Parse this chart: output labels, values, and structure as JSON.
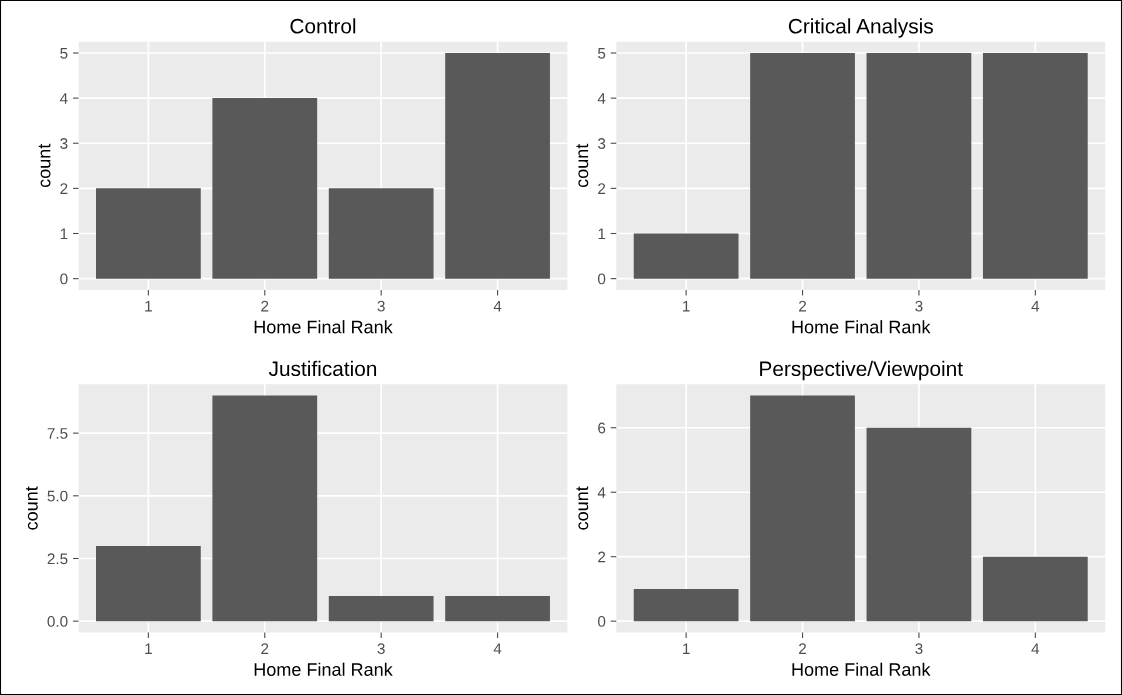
{
  "chart_data": [
    {
      "type": "bar",
      "title": "Control",
      "xlabel": "Home Final Rank",
      "ylabel": "count",
      "categories": [
        "1",
        "2",
        "3",
        "4"
      ],
      "values": [
        2,
        4,
        2,
        5
      ],
      "color": "#595959",
      "ylim": [
        -0.25,
        5.25
      ],
      "yticks": [
        0,
        1,
        2,
        3,
        4,
        5
      ],
      "grid": true
    },
    {
      "type": "bar",
      "title": "Critical Analysis",
      "xlabel": "Home Final Rank",
      "ylabel": "count",
      "categories": [
        "1",
        "2",
        "3",
        "4"
      ],
      "values": [
        1,
        5,
        5,
        5
      ],
      "color": "#595959",
      "ylim": [
        -0.25,
        5.25
      ],
      "yticks": [
        0,
        1,
        2,
        3,
        4,
        5
      ],
      "grid": true
    },
    {
      "type": "bar",
      "title": "Justification",
      "xlabel": "Home Final Rank",
      "ylabel": "count",
      "categories": [
        "1",
        "2",
        "3",
        "4"
      ],
      "values": [
        3,
        9,
        1,
        1
      ],
      "color": "#595959",
      "ylim": [
        -0.45,
        9.45
      ],
      "yticks": [
        {
          "value": 0,
          "label": "0.0"
        },
        2.5,
        {
          "value": 5,
          "label": "5.0"
        },
        7.5
      ],
      "grid": true
    },
    {
      "type": "bar",
      "title": "Perspective/Viewpoint",
      "xlabel": "Home Final Rank",
      "ylabel": "count",
      "categories": [
        "1",
        "2",
        "3",
        "4"
      ],
      "values": [
        1,
        7,
        6,
        2
      ],
      "color": "#595959",
      "ylim": [
        -0.35,
        7.35
      ],
      "yticks": [
        0,
        2,
        4,
        6
      ],
      "grid": true
    }
  ]
}
